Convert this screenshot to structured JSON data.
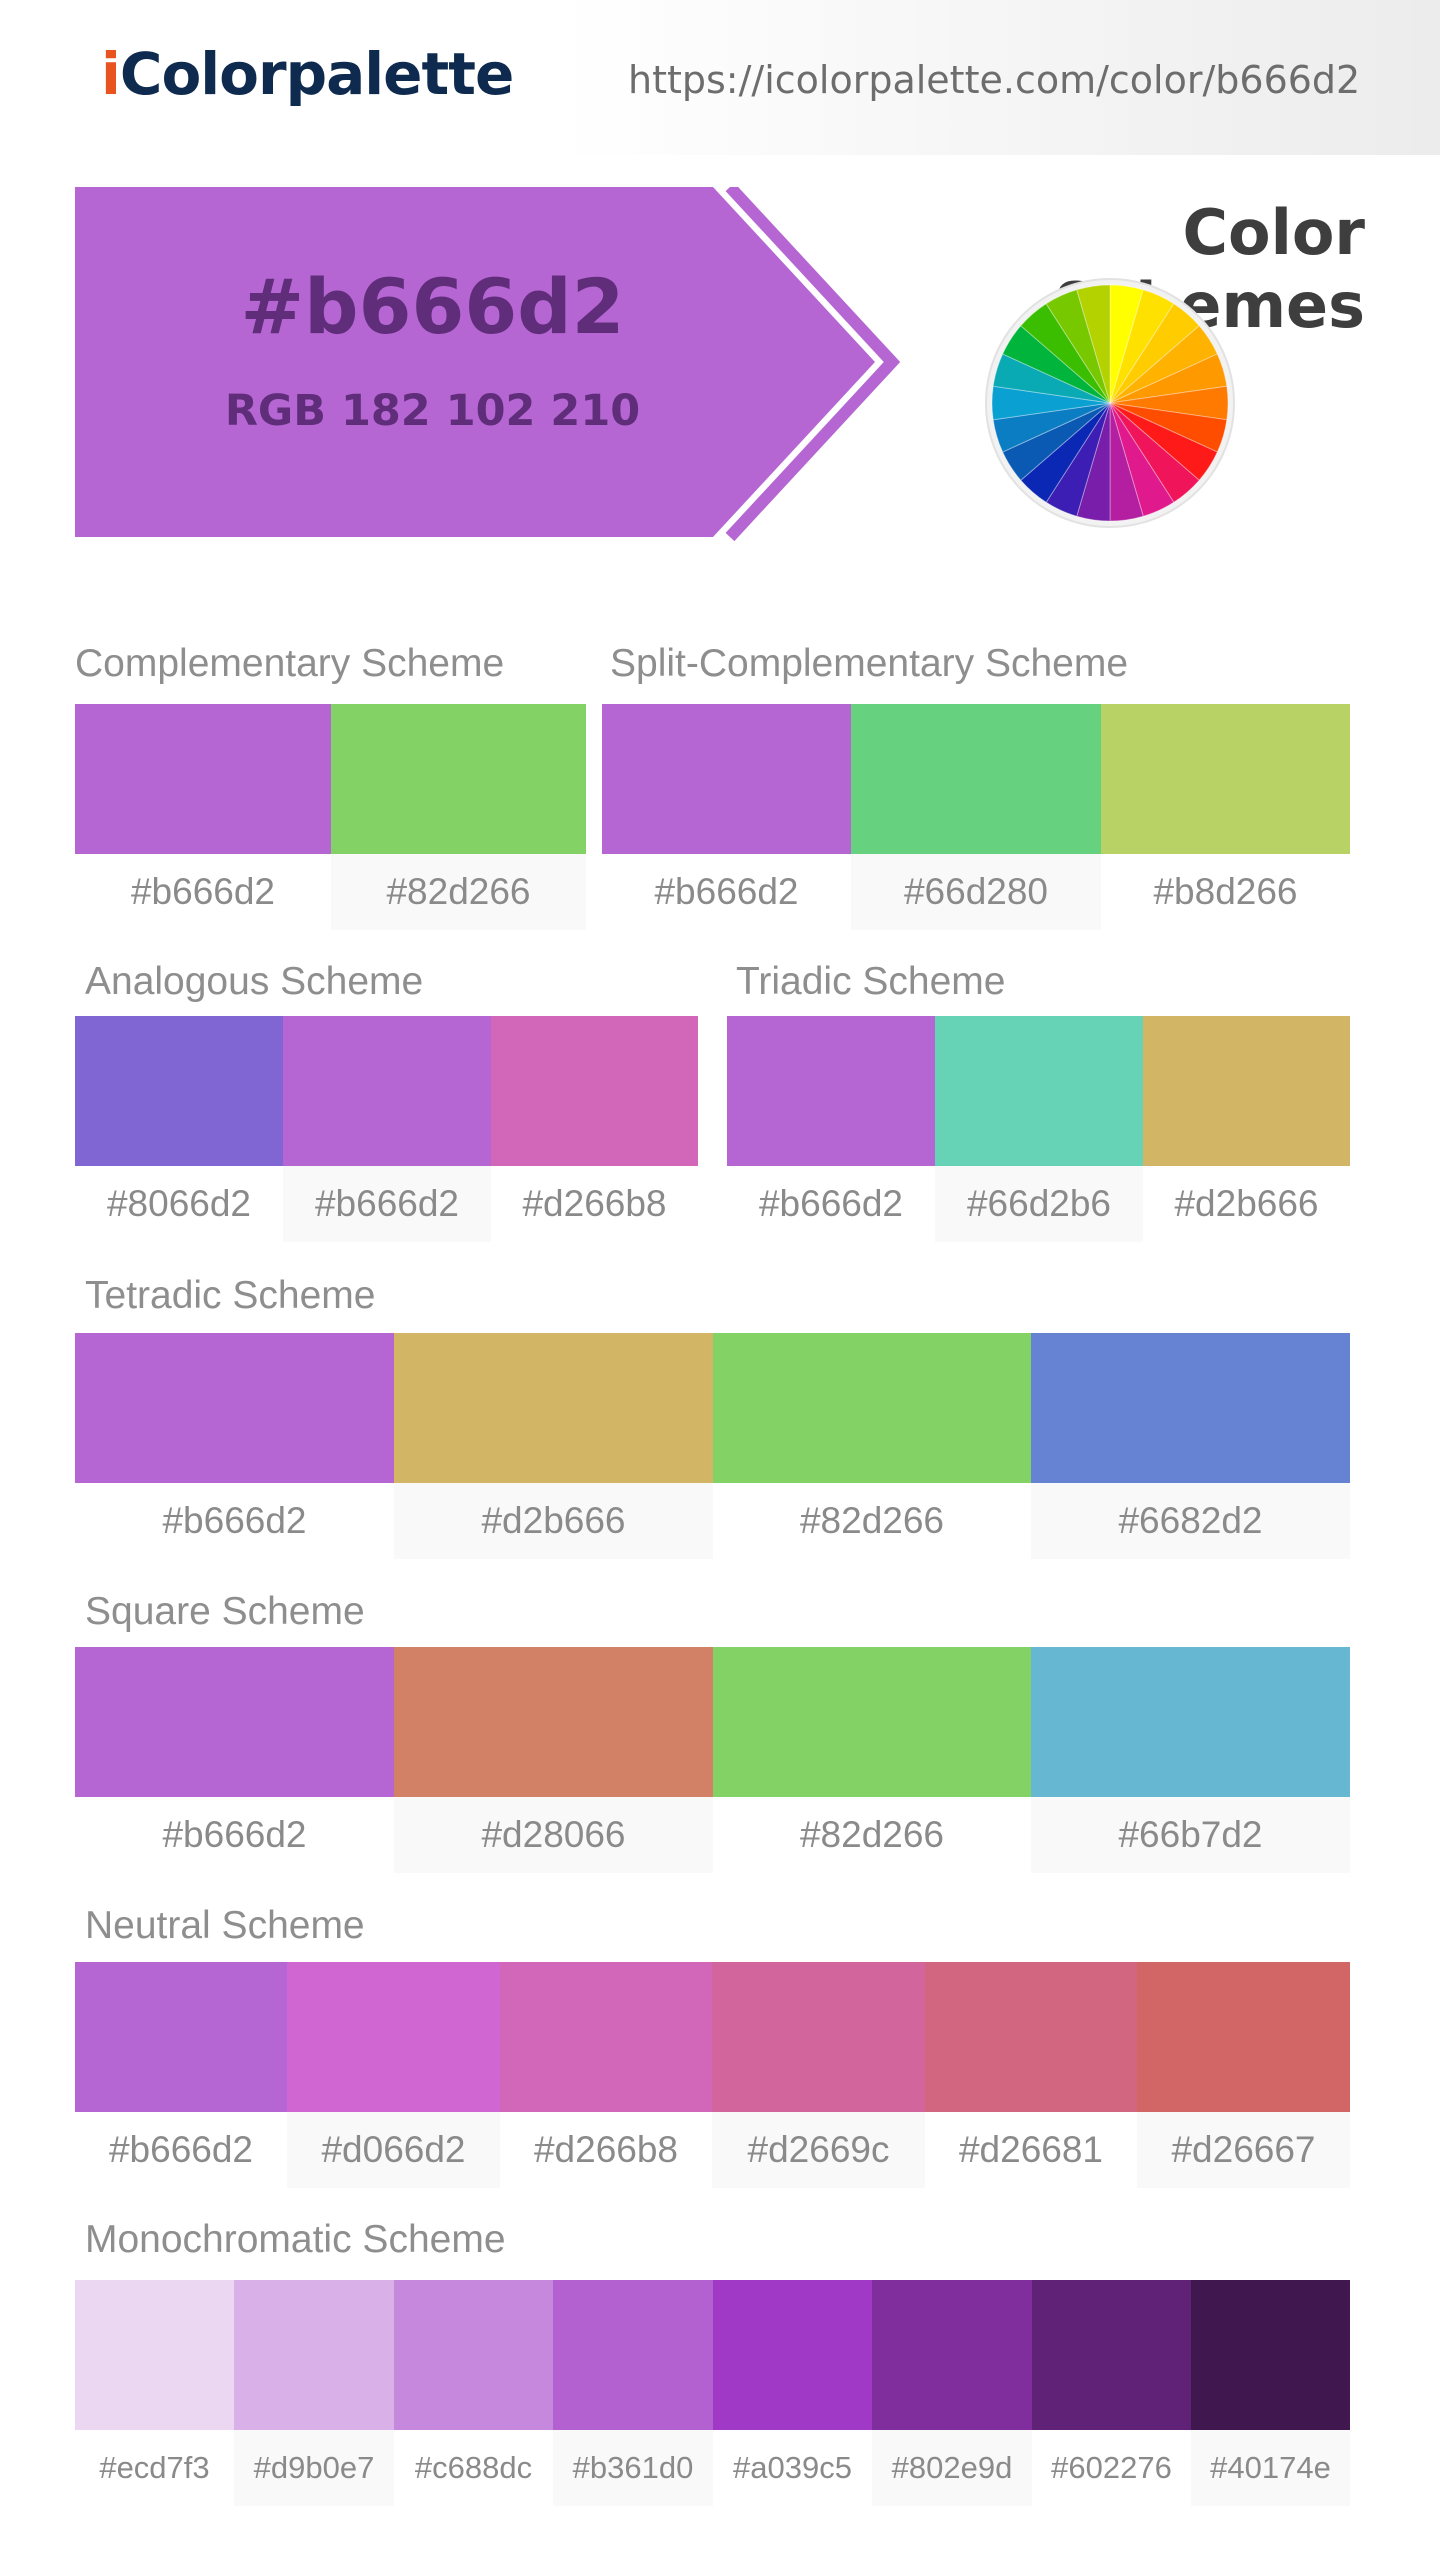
{
  "header": {
    "logo_i": "i",
    "logo_rest": "Colorpalette",
    "url": "https://icolorpalette.com/color/b666d2"
  },
  "banner": {
    "hex": "#b666d2",
    "rgb": "RGB 182 102 210",
    "color": "#b666d2",
    "text_color": "#5f2d7a"
  },
  "wheel_title": "Color Schemes",
  "schemes": {
    "complementary": {
      "label": "Complementary Scheme",
      "colors": [
        "#b666d2",
        "#82d266"
      ]
    },
    "split_complementary": {
      "label": "Split-Complementary Scheme",
      "colors": [
        "#b666d2",
        "#66d280",
        "#b8d266"
      ]
    },
    "analogous": {
      "label": "Analogous Scheme",
      "colors": [
        "#8066d2",
        "#b666d2",
        "#d266b8"
      ]
    },
    "triadic": {
      "label": "Triadic Scheme",
      "colors": [
        "#b666d2",
        "#66d2b6",
        "#d2b666"
      ]
    },
    "tetradic": {
      "label": "Tetradic Scheme",
      "colors": [
        "#b666d2",
        "#d2b666",
        "#82d266",
        "#6682d2"
      ]
    },
    "square": {
      "label": "Square Scheme",
      "colors": [
        "#b666d2",
        "#d28066",
        "#82d266",
        "#66b7d2"
      ]
    },
    "neutral": {
      "label": "Neutral Scheme",
      "colors": [
        "#b666d2",
        "#d066d2",
        "#d266b8",
        "#d2669c",
        "#d26681",
        "#d26667"
      ]
    },
    "monochromatic": {
      "label": "Monochromatic Scheme",
      "colors": [
        "#ecd7f3",
        "#d9b0e7",
        "#c688dc",
        "#b361d0",
        "#a039c5",
        "#802e9d",
        "#602276",
        "#40174e"
      ]
    }
  }
}
